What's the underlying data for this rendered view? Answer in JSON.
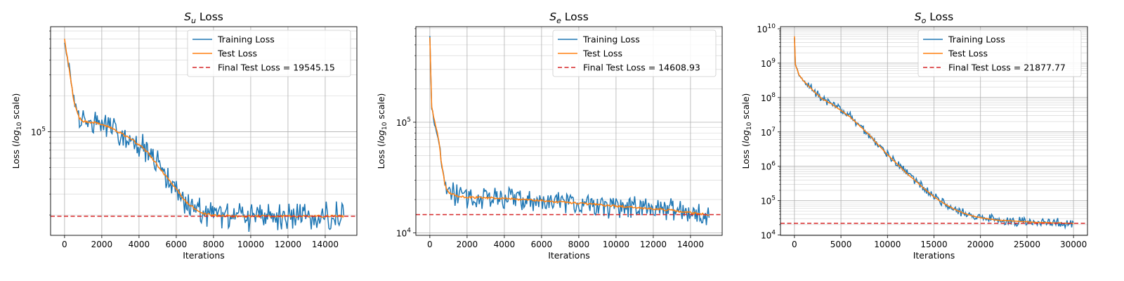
{
  "chart_data": [
    {
      "type": "line",
      "title": "S_u Loss",
      "title_main": "S",
      "title_sub": "u",
      "title_rest": " Loss",
      "xlabel": "Iterations",
      "ylabel_prefix": "Loss (",
      "ylabel_log": "log",
      "ylabel_sub": "10",
      "ylabel_suffix": " scale)",
      "xlim": [
        -750,
        15700
      ],
      "ylim": [
        13500,
        760000
      ],
      "yscale": "log",
      "xticks": [
        0,
        2000,
        4000,
        6000,
        8000,
        10000,
        12000,
        14000
      ],
      "xticklabels": [
        "0",
        "2000",
        "4000",
        "6000",
        "8000",
        "10000",
        "12000",
        "14000"
      ],
      "yticks": [
        100000
      ],
      "ytick_base": "10",
      "ytick_exp": [
        "5"
      ],
      "grid": true,
      "legend_position": "upper right",
      "noise_amp": 0.09,
      "final_value": 19545.15,
      "final_label": "Final Test Loss = 19545.15",
      "series": [
        {
          "name": "Training Loss",
          "color": "#1f77b4"
        },
        {
          "name": "Test Loss",
          "color": "#ff7f0e",
          "x": [
            0,
            150,
            300,
            500,
            800,
            1000,
            1500,
            2000,
            2500,
            3000,
            3500,
            4000,
            4500,
            5000,
            5500,
            6000,
            6500,
            7000,
            7500,
            8000,
            9000,
            10000,
            11000,
            12000,
            13000,
            14000,
            15000
          ],
          "y": [
            600000,
            420000,
            300000,
            180000,
            130000,
            122000,
            120000,
            115000,
            108000,
            98000,
            88000,
            78000,
            66000,
            52000,
            41000,
            33000,
            26000,
            22500,
            20500,
            19800,
            19600,
            19500,
            19550,
            19500,
            19550,
            19550,
            19545
          ]
        }
      ]
    },
    {
      "type": "line",
      "title": "S_e Loss",
      "title_main": "S",
      "title_sub": "e",
      "title_rest": " Loss",
      "xlabel": "Iterations",
      "ylabel_prefix": "Loss (",
      "ylabel_log": "log",
      "ylabel_sub": "10",
      "ylabel_suffix": " scale)",
      "xlim": [
        -750,
        15700
      ],
      "ylim": [
        9500,
        730000
      ],
      "yscale": "log",
      "xticks": [
        0,
        2000,
        4000,
        6000,
        8000,
        10000,
        12000,
        14000
      ],
      "xticklabels": [
        "0",
        "2000",
        "4000",
        "6000",
        "8000",
        "10000",
        "12000",
        "14000"
      ],
      "yticks": [
        10000,
        100000
      ],
      "ytick_base": "10",
      "ytick_exp": [
        "4",
        "5"
      ],
      "grid": true,
      "legend_position": "upper right",
      "noise_amp": 0.08,
      "final_value": 14608.93,
      "final_label": "Final Test Loss = 14608.93",
      "series": [
        {
          "name": "Training Loss",
          "color": "#1f77b4"
        },
        {
          "name": "Test Loss",
          "color": "#ff7f0e",
          "x": [
            0,
            100,
            200,
            300,
            400,
            500,
            600,
            800,
            1000,
            1500,
            2000,
            4000,
            6000,
            8000,
            10000,
            12000,
            13000,
            14000,
            15000
          ],
          "y": [
            580000,
            140000,
            110000,
            95000,
            80000,
            65000,
            45000,
            28000,
            23000,
            21500,
            21000,
            20500,
            19500,
            18500,
            17500,
            16500,
            16000,
            15200,
            14609
          ]
        }
      ]
    },
    {
      "type": "line",
      "title": "S_o Loss",
      "title_main": "S",
      "title_sub": "o",
      "title_rest": " Loss",
      "xlabel": "Iterations",
      "ylabel_prefix": "Loss (",
      "ylabel_log": "log",
      "ylabel_sub": "10",
      "ylabel_suffix": " scale)",
      "xlim": [
        -1500,
        31500
      ],
      "ylim": [
        9800,
        11500000000
      ],
      "yscale": "log",
      "xticks": [
        0,
        5000,
        10000,
        15000,
        20000,
        25000,
        30000
      ],
      "xticklabels": [
        "0",
        "5000",
        "10000",
        "15000",
        "20000",
        "25000",
        "30000"
      ],
      "yticks": [
        10000,
        100000,
        1000000,
        10000000,
        100000000,
        1000000000,
        10000000000
      ],
      "ytick_base": "10",
      "ytick_exp": [
        "4",
        "5",
        "6",
        "7",
        "8",
        "9",
        "10"
      ],
      "grid": true,
      "legend_position": "upper right",
      "noise_amp": 0.1,
      "final_value": 21877.77,
      "final_label": "Final Test Loss = 21877.77",
      "series": [
        {
          "name": "Training Loss",
          "color": "#1f77b4"
        },
        {
          "name": "Test Loss",
          "color": "#ff7f0e",
          "x": [
            0,
            100,
            300,
            500,
            1000,
            2000,
            3000,
            4000,
            5000,
            6000,
            7000,
            8000,
            9000,
            10000,
            11000,
            12000,
            13000,
            14000,
            15000,
            16000,
            17000,
            18000,
            19000,
            20000,
            21000,
            22000,
            24000,
            26000,
            28000,
            30000
          ],
          "y": [
            6000000000,
            900000000,
            650000000,
            450000000,
            300000000,
            160000000,
            90000000,
            65000000,
            42000000,
            27000000,
            15000000,
            8500000,
            4200000,
            2200000,
            1200000,
            650000,
            380000,
            220000,
            130000,
            85000,
            60000,
            45000,
            37000,
            32000,
            29000,
            27000,
            25000,
            23500,
            22500,
            21878
          ]
        }
      ]
    }
  ]
}
